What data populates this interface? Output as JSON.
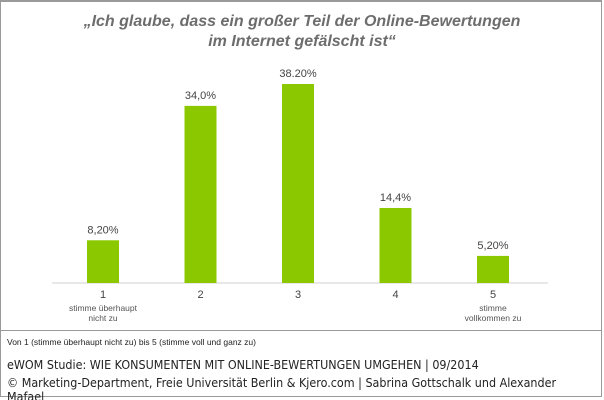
{
  "chart_data": {
    "type": "bar",
    "title_line1": "„Ich glaube, dass ein großer Teil der Online-Bewertungen",
    "title_line2": "im Internet gefälscht ist“",
    "categories": [
      "1",
      "2",
      "3",
      "4",
      "5"
    ],
    "category_sublabels": [
      [
        "stimme überhaupt",
        "nicht zu"
      ],
      [],
      [],
      [],
      [
        "stimme",
        "vollkommen zu"
      ]
    ],
    "values": [
      8.2,
      34.0,
      38.2,
      14.4,
      5.2
    ],
    "data_labels": [
      "8,20%",
      "34,0%",
      "38.20%",
      "14,4%",
      "5,20%"
    ],
    "ylim": [
      0,
      40
    ],
    "grid": false,
    "bar_color": "#8cc800",
    "unit": "%"
  },
  "footer": {
    "note": "Von 1 (stimme überhaupt nicht zu) bis 5 (stimme voll und ganz zu)",
    "study": "eWOM Studie: WIE KONSUMENTEN MIT ONLINE-BEWERTUNGEN UMGEHEN | 09/2014",
    "copyright": "© Marketing-Department, Freie Universität Berlin & Kjero.com | Sabrina Gottschalk und Alexander Mafael"
  }
}
